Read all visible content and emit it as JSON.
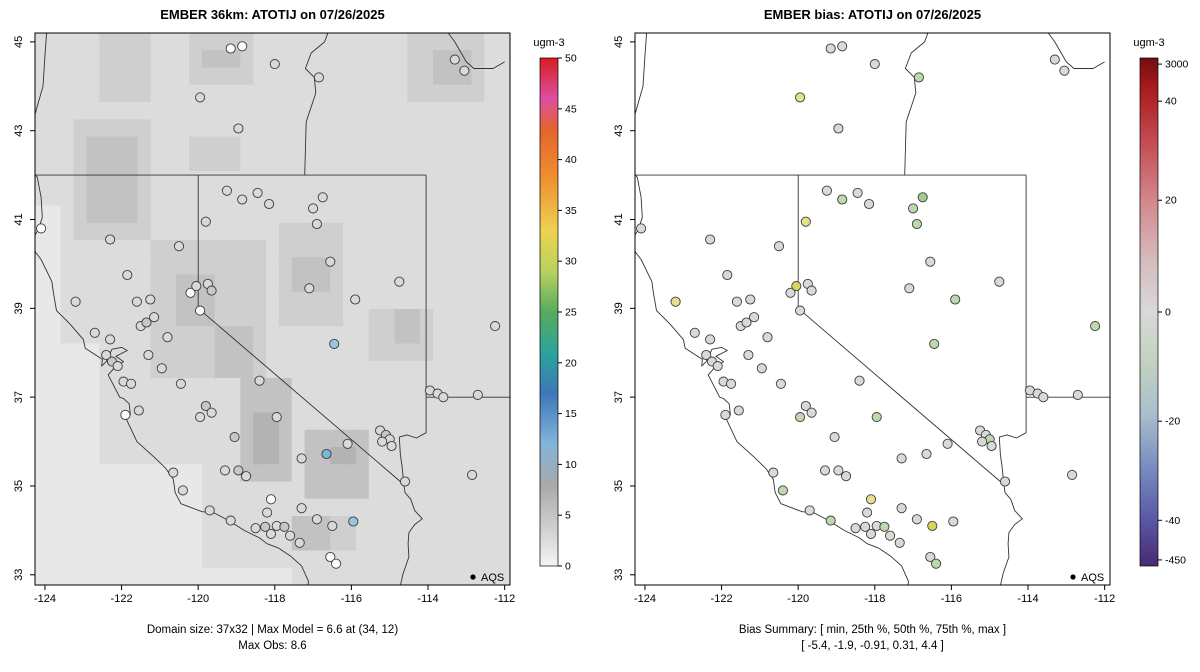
{
  "chart_data": {
    "type": "scatter",
    "description": "Two-panel air quality model evaluation maps over California/Nevada with AQS station circles",
    "panels": [
      {
        "id": "model",
        "title": "EMBER 36km: ATOTIJ on 07/26/2025",
        "caption1": "Domain size: 37x32 | Max Model = 6.6 at (34, 12)",
        "caption2": "Max Obs: 8.6",
        "raster": true,
        "station_color_key": 2,
        "colorbar": {
          "title": "ugm-3",
          "ticks": [
            [
              "50",
              0.0
            ],
            [
              "45",
              0.1
            ],
            [
              "40",
              0.2
            ],
            [
              "35",
              0.3
            ],
            [
              "30",
              0.4
            ],
            [
              "25",
              0.5
            ],
            [
              "20",
              0.6
            ],
            [
              "15",
              0.7
            ],
            [
              "10",
              0.8
            ],
            [
              "5",
              0.9
            ],
            [
              "0",
              1.0
            ]
          ],
          "stops": [
            [
              0.0,
              "#d81e1e"
            ],
            [
              0.08,
              "#dc4fa2"
            ],
            [
              0.14,
              "#e4632e"
            ],
            [
              0.24,
              "#ef9231"
            ],
            [
              0.34,
              "#eed24f"
            ],
            [
              0.42,
              "#b8d25e"
            ],
            [
              0.5,
              "#58ab5e"
            ],
            [
              0.58,
              "#2aa49b"
            ],
            [
              0.66,
              "#3d77b8"
            ],
            [
              0.76,
              "#84b4da"
            ],
            [
              0.84,
              "#a9a9a9"
            ],
            [
              0.92,
              "#cdcdcd"
            ],
            [
              1.0,
              "#f4f4f4"
            ]
          ]
        }
      },
      {
        "id": "bias",
        "title": "EMBER bias: ATOTIJ on 07/26/2025",
        "caption1": "Bias Summary: [ min, 25th %, 50th %, 75th %, max ]",
        "caption2": "[ -5.4,  -1.9,  -0.91,  0.31,  4.4 ]",
        "raster": false,
        "station_color_key": 3,
        "colorbar": {
          "title": "ugm-3",
          "ticks": [
            [
              "3000",
              0.012
            ],
            [
              "40",
              0.085
            ],
            [
              "20",
              0.28
            ],
            [
              "0",
              0.5
            ],
            [
              "-20",
              0.715
            ],
            [
              "-40",
              0.91
            ],
            [
              "-450",
              0.988
            ]
          ],
          "stops": [
            [
              0.0,
              "#720e0e"
            ],
            [
              0.06,
              "#a91b1e"
            ],
            [
              0.16,
              "#c24a50"
            ],
            [
              0.28,
              "#d2878c"
            ],
            [
              0.4,
              "#d6bcbd"
            ],
            [
              0.5,
              "#d9d9d9"
            ],
            [
              0.6,
              "#c2d2bf"
            ],
            [
              0.7,
              "#aabfcd"
            ],
            [
              0.8,
              "#7b8fc0"
            ],
            [
              0.9,
              "#5c5ca8"
            ],
            [
              1.0,
              "#472a74"
            ]
          ]
        }
      }
    ],
    "axes": {
      "x_ticks": [
        -124,
        -122,
        -120,
        -118,
        -116,
        -114,
        -112
      ],
      "y_ticks": [
        33,
        35,
        37,
        39,
        41,
        43,
        45
      ],
      "lon_range": [
        -124.26,
        -111.86
      ],
      "lat_range": [
        32.77,
        45.2
      ]
    },
    "legend": {
      "label": "AQS"
    },
    "palette": {
      "w": "#fcfcfc",
      "g1": "#e6e6e6",
      "g2": "#d9d9d9",
      "g3": "#c7c7c7",
      "b1": "#9cc6e0",
      "b2": "#7cb6d9",
      "y1": "#e5df8f",
      "y2": "#dcd35c",
      "gr1": "#bcd8ac",
      "gr2": "#a2cc94",
      "cr": "#e9e5c8"
    },
    "raster": {
      "ncols": 37,
      "nrows": 32,
      "levels": [
        "#e8e8e8",
        "#dcdcdc",
        "#cfcfcf",
        "#c2c2c2",
        "#b3b3b3"
      ],
      "patches": [
        [
          -124.3,
          -120.0,
          32.7,
          35.3,
          -1
        ],
        [
          -124.3,
          -122.6,
          35.3,
          38.3,
          -1
        ],
        [
          -124.3,
          -123.6,
          38.3,
          41.2,
          -1
        ],
        [
          -120.0,
          -117.6,
          32.7,
          33.25,
          -1
        ],
        [
          -123.4,
          -121.3,
          40.6,
          43.3,
          1
        ],
        [
          -122.9,
          -121.7,
          41.0,
          42.7,
          2
        ],
        [
          -120.3,
          -118.4,
          43.9,
          45.25,
          1
        ],
        [
          -119.8,
          -118.9,
          44.3,
          45.0,
          2
        ],
        [
          -114.4,
          -112.4,
          43.7,
          45.25,
          1
        ],
        [
          -113.8,
          -112.7,
          44.1,
          44.9,
          2
        ],
        [
          -122.6,
          -121.2,
          43.8,
          45.25,
          1
        ],
        [
          -120.2,
          -118.8,
          42.0,
          43.0,
          1
        ],
        [
          -121.3,
          -118.3,
          37.3,
          40.7,
          1
        ],
        [
          -120.6,
          -119.5,
          38.5,
          39.9,
          2
        ],
        [
          -119.6,
          -118.7,
          37.5,
          38.7,
          2
        ],
        [
          -117.9,
          -116.1,
          38.5,
          41.1,
          1
        ],
        [
          -117.5,
          -116.7,
          39.3,
          40.3,
          2
        ],
        [
          -115.5,
          -113.8,
          37.7,
          39.1,
          1
        ],
        [
          -114.9,
          -114.2,
          38.1,
          38.8,
          2
        ],
        [
          -118.9,
          -117.5,
          35.1,
          37.3,
          2
        ],
        [
          -118.5,
          -117.9,
          35.5,
          36.7,
          3
        ],
        [
          -117.3,
          -115.7,
          34.7,
          36.3,
          2
        ],
        [
          -116.7,
          -116.0,
          35.4,
          36.0,
          3
        ],
        [
          -117.7,
          -116.6,
          33.5,
          34.3,
          2
        ],
        [
          -116.6,
          -115.8,
          33.6,
          34.4,
          1
        ]
      ]
    },
    "borders": {
      "coast": [
        [
          -123.95,
          45.3
        ],
        [
          -124.0,
          44.7
        ],
        [
          -124.05,
          44.0
        ],
        [
          -124.25,
          43.4
        ],
        [
          -124.4,
          43.1
        ],
        [
          -124.35,
          42.6
        ],
        [
          -124.45,
          42.2
        ],
        [
          -124.2,
          41.95
        ],
        [
          -124.1,
          41.5
        ],
        [
          -124.07,
          41.05
        ],
        [
          -124.17,
          40.78
        ],
        [
          -124.4,
          40.44
        ],
        [
          -124.1,
          40.1
        ],
        [
          -123.82,
          39.6
        ],
        [
          -123.78,
          39.35
        ],
        [
          -123.7,
          38.95
        ],
        [
          -123.35,
          38.65
        ],
        [
          -123.0,
          38.3
        ],
        [
          -122.95,
          38.1
        ],
        [
          -122.5,
          37.85
        ],
        [
          -122.52,
          37.7
        ],
        [
          -122.4,
          37.8
        ],
        [
          -122.25,
          38.08
        ],
        [
          -122.0,
          38.12
        ],
        [
          -121.85,
          38.05
        ],
        [
          -122.15,
          37.92
        ],
        [
          -121.95,
          37.8
        ],
        [
          -122.2,
          37.65
        ],
        [
          -122.35,
          37.5
        ],
        [
          -122.05,
          37.0
        ],
        [
          -121.95,
          36.97
        ],
        [
          -121.8,
          36.85
        ],
        [
          -121.77,
          36.6
        ],
        [
          -121.9,
          36.55
        ],
        [
          -121.6,
          36.0
        ],
        [
          -121.15,
          35.65
        ],
        [
          -120.85,
          35.4
        ],
        [
          -120.65,
          35.15
        ],
        [
          -120.6,
          34.85
        ],
        [
          -120.45,
          34.6
        ],
        [
          -119.9,
          34.42
        ],
        [
          -119.6,
          34.4
        ],
        [
          -119.2,
          34.22
        ],
        [
          -118.8,
          34.0
        ],
        [
          -118.4,
          33.83
        ],
        [
          -118.2,
          33.7
        ],
        [
          -117.9,
          33.6
        ],
        [
          -117.6,
          33.43
        ],
        [
          -117.3,
          33.2
        ],
        [
          -117.12,
          32.85
        ],
        [
          -117.15,
          32.62
        ]
      ],
      "parallel42": [
        [
          -124.35,
          42.0
        ],
        [
          -114.05,
          42.0
        ]
      ],
      "ca_nv_vert": [
        [
          -120.0,
          42.0
        ],
        [
          -120.0,
          39.0
        ]
      ],
      "ca_nv_diag": [
        [
          -120.0,
          39.0
        ],
        [
          -114.63,
          35.03
        ]
      ],
      "colorado_river": [
        [
          -114.05,
          36.2
        ],
        [
          -114.3,
          36.08
        ],
        [
          -114.55,
          36.15
        ],
        [
          -114.75,
          36.1
        ],
        [
          -114.72,
          35.7
        ],
        [
          -114.68,
          35.45
        ],
        [
          -114.63,
          35.03
        ],
        [
          -114.6,
          34.85
        ],
        [
          -114.45,
          34.7
        ],
        [
          -114.35,
          34.45
        ],
        [
          -114.15,
          34.26
        ],
        [
          -114.35,
          34.13
        ],
        [
          -114.5,
          33.95
        ],
        [
          -114.52,
          33.7
        ],
        [
          -114.5,
          33.4
        ],
        [
          -114.65,
          33.03
        ],
        [
          -114.73,
          32.73
        ]
      ],
      "mexico": [
        [
          -117.15,
          32.62
        ],
        [
          -114.73,
          32.73
        ],
        [
          -113.3,
          32.35
        ]
      ],
      "nv_ut_vert": [
        [
          -114.05,
          42.0
        ],
        [
          -114.05,
          36.2
        ]
      ],
      "ut_az_37": [
        [
          -114.05,
          37.0
        ],
        [
          -111.8,
          37.0
        ]
      ],
      "or_id": [
        [
          -117.22,
          42.0
        ],
        [
          -117.18,
          43.2
        ],
        [
          -116.93,
          43.85
        ],
        [
          -116.97,
          44.2
        ],
        [
          -117.2,
          44.4
        ],
        [
          -117.05,
          44.75
        ],
        [
          -116.7,
          45.0
        ],
        [
          -116.55,
          45.35
        ]
      ],
      "id_mt": [
        [
          -113.6,
          45.35
        ],
        [
          -113.3,
          45.0
        ],
        [
          -113.0,
          44.55
        ],
        [
          -112.8,
          44.4
        ],
        [
          -112.3,
          44.4
        ],
        [
          -112.0,
          44.55
        ]
      ]
    },
    "stations": [
      [
        -119.15,
        44.85,
        "w",
        "g2"
      ],
      [
        -118.85,
        44.9,
        "w",
        "g2"
      ],
      [
        -118.0,
        44.5,
        "g2",
        "g2"
      ],
      [
        -119.95,
        43.75,
        "g2",
        "y1"
      ],
      [
        -116.85,
        44.2,
        "g2",
        "gr1"
      ],
      [
        -113.3,
        44.6,
        "g2",
        "g2"
      ],
      [
        -113.05,
        44.35,
        "g2",
        "g2"
      ],
      [
        -118.95,
        43.05,
        "g2",
        "g2"
      ],
      [
        -124.1,
        40.8,
        "w",
        "g2"
      ],
      [
        -119.25,
        41.65,
        "g2",
        "g2"
      ],
      [
        -118.85,
        41.45,
        "g2",
        "gr1"
      ],
      [
        -118.45,
        41.6,
        "g2",
        "g2"
      ],
      [
        -118.15,
        41.35,
        "g2",
        "g2"
      ],
      [
        -117.0,
        41.25,
        "g2",
        "gr1"
      ],
      [
        -116.75,
        41.5,
        "g2",
        "gr2"
      ],
      [
        -116.9,
        40.9,
        "g2",
        "gr1"
      ],
      [
        -119.8,
        40.95,
        "g2",
        "y1"
      ],
      [
        -120.5,
        40.4,
        "g2",
        "g2"
      ],
      [
        -122.3,
        40.55,
        "g2",
        "g2"
      ],
      [
        -121.85,
        39.75,
        "g2",
        "g2"
      ],
      [
        -121.6,
        39.15,
        "g2",
        "g2"
      ],
      [
        -121.25,
        39.2,
        "g2",
        "g2"
      ],
      [
        -120.2,
        39.35,
        "w",
        "g2"
      ],
      [
        -119.75,
        39.55,
        "g2",
        "g2"
      ],
      [
        -119.65,
        39.4,
        "g3",
        "g2"
      ],
      [
        -120.05,
        39.5,
        "g2",
        "y2"
      ],
      [
        -116.55,
        40.05,
        "g2",
        "g2"
      ],
      [
        -115.9,
        39.2,
        "g2",
        "gr1"
      ],
      [
        -114.75,
        39.6,
        "g2",
        "g2"
      ],
      [
        -117.1,
        39.45,
        "g2",
        "g2"
      ],
      [
        -121.5,
        38.6,
        "g2",
        "g2"
      ],
      [
        -121.35,
        38.68,
        "g3",
        "g2"
      ],
      [
        -121.15,
        38.8,
        "g2",
        "g2"
      ],
      [
        -120.8,
        38.35,
        "g2",
        "g2"
      ],
      [
        -122.7,
        38.45,
        "g2",
        "g2"
      ],
      [
        -122.3,
        38.3,
        "g2",
        "g2"
      ],
      [
        -122.4,
        37.95,
        "g2",
        "g2"
      ],
      [
        -122.25,
        37.8,
        "g3",
        "g2"
      ],
      [
        -122.1,
        37.7,
        "g2",
        "g2"
      ],
      [
        -121.95,
        37.35,
        "g2",
        "g2"
      ],
      [
        -121.75,
        37.3,
        "g2",
        "g2"
      ],
      [
        -123.2,
        39.15,
        "g2",
        "y1"
      ],
      [
        -119.95,
        38.95,
        "w",
        "g2"
      ],
      [
        -121.9,
        36.6,
        "w",
        "g2"
      ],
      [
        -121.55,
        36.7,
        "g2",
        "g2"
      ],
      [
        -120.65,
        35.3,
        "g2",
        "g2"
      ],
      [
        -120.4,
        34.9,
        "g2",
        "gr1"
      ],
      [
        -119.7,
        34.45,
        "g2",
        "g2"
      ],
      [
        -119.15,
        34.22,
        "g2",
        "gr1"
      ],
      [
        -121.3,
        37.95,
        "g2",
        "g2"
      ],
      [
        -120.95,
        37.65,
        "g2",
        "g2"
      ],
      [
        -120.45,
        37.3,
        "g2",
        "g2"
      ],
      [
        -119.8,
        36.8,
        "g3",
        "g2"
      ],
      [
        -119.65,
        36.65,
        "g2",
        "g2"
      ],
      [
        -119.95,
        36.55,
        "g2",
        "gr1"
      ],
      [
        -119.05,
        36.1,
        "g3",
        "g2"
      ],
      [
        -118.95,
        35.35,
        "g3",
        "g2"
      ],
      [
        -118.75,
        35.22,
        "g2",
        "g2"
      ],
      [
        -119.3,
        35.35,
        "g2",
        "g2"
      ],
      [
        -118.4,
        37.37,
        "g2",
        "g2"
      ],
      [
        -117.95,
        36.55,
        "g2",
        "gr1"
      ],
      [
        -116.45,
        38.2,
        "b1",
        "gr1"
      ],
      [
        -112.25,
        38.6,
        "g2",
        "gr1"
      ],
      [
        -112.7,
        37.05,
        "g2",
        "g2"
      ],
      [
        -113.95,
        37.15,
        "g2",
        "g2"
      ],
      [
        -113.75,
        37.08,
        "g2",
        "g2"
      ],
      [
        -113.6,
        37.0,
        "g2",
        "g2"
      ],
      [
        -112.85,
        35.25,
        "g2",
        "g2"
      ],
      [
        -115.25,
        36.25,
        "g2",
        "g2"
      ],
      [
        -115.1,
        36.15,
        "g3",
        "g2"
      ],
      [
        -115.0,
        36.05,
        "g2",
        "gr1"
      ],
      [
        -115.2,
        36.0,
        "g2",
        "g2"
      ],
      [
        -114.95,
        35.9,
        "g2",
        "g2"
      ],
      [
        -116.65,
        35.72,
        "b2",
        "g2"
      ],
      [
        -117.3,
        35.62,
        "g2",
        "g2"
      ],
      [
        -116.1,
        35.95,
        "g2",
        "g2"
      ],
      [
        -114.6,
        35.1,
        "g2",
        "g2"
      ],
      [
        -118.5,
        34.05,
        "g2",
        "g2"
      ],
      [
        -118.25,
        34.08,
        "g3",
        "g2"
      ],
      [
        -118.1,
        33.92,
        "g2",
        "g2"
      ],
      [
        -117.95,
        34.1,
        "g2",
        "g2"
      ],
      [
        -117.75,
        34.08,
        "g3",
        "gr1"
      ],
      [
        -117.6,
        33.88,
        "g2",
        "g2"
      ],
      [
        -117.35,
        33.72,
        "g2",
        "g2"
      ],
      [
        -118.2,
        34.4,
        "g2",
        "g2"
      ],
      [
        -118.1,
        34.7,
        "w",
        "y1"
      ],
      [
        -117.3,
        34.5,
        "g2",
        "g2"
      ],
      [
        -116.9,
        34.25,
        "g2",
        "g2"
      ],
      [
        -116.5,
        34.1,
        "g2",
        "y2"
      ],
      [
        -115.95,
        34.2,
        "b1",
        "g2"
      ],
      [
        -116.55,
        33.4,
        "w",
        "g2"
      ],
      [
        -116.4,
        33.25,
        "w",
        "gr1"
      ]
    ]
  }
}
